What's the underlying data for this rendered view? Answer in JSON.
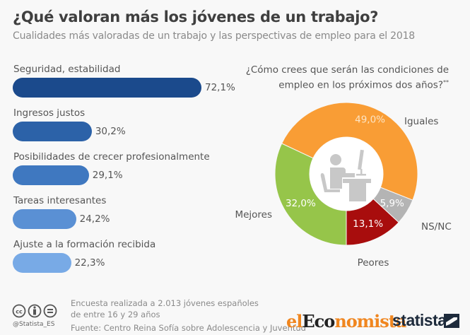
{
  "header": {
    "title": "¿Qué valoran más los jóvenes de un trabajo?",
    "subtitle": "Cualidades más valoradas de un trabajo y las perspectivas de empleo para el 2018"
  },
  "chart_data": [
    {
      "type": "bar",
      "orientation": "horizontal",
      "title": "Cualidades más valoradas de un trabajo",
      "categories": [
        "Seguridad, estabilidad",
        "Ingresos justos",
        "Posibilidades de crecer profesionalmente",
        "Tareas interesantes",
        "Ajuste a la formación recibida"
      ],
      "values": [
        72.1,
        30.2,
        29.1,
        24.2,
        22.3
      ],
      "value_labels": [
        "72,1%",
        "30,2%",
        "29,1%",
        "24,2%",
        "22,3%"
      ],
      "colors": [
        "#1b4a8c",
        "#2c62a8",
        "#3f78c0",
        "#5a90d4",
        "#78aae6"
      ],
      "unit": "%",
      "xlim": [
        0,
        72.1
      ],
      "grid": false
    },
    {
      "type": "pie",
      "style": "donut",
      "title": "¿Cómo crees que serán las condiciones de empleo en los próximos dos años?",
      "title_suffix": "**",
      "labels": [
        "Iguales",
        "NS/NC",
        "Peores",
        "Mejores"
      ],
      "values": [
        49.0,
        5.9,
        13.1,
        32.0
      ],
      "value_labels": [
        "49,0%",
        "5,9%",
        "13,1%",
        "32,0%"
      ],
      "colors": [
        "#f99d35",
        "#b4b4b4",
        "#a80d0d",
        "#96c54a"
      ],
      "center_icon": "office-worker-icon"
    }
  ],
  "footer": {
    "note_line1": "Encuesta realizada a 2.013 jóvenes españoles",
    "note_line2": "de entre 16 y 29 años",
    "source": "Fuente: Centro Reina Sofía sobre Adolescencia y Juventud",
    "handle": "@Statista_ES",
    "license_icons": [
      "cc-icon",
      "attribution-icon",
      "no-derivatives-icon"
    ]
  },
  "logos": {
    "eleconomista_part1": "el",
    "eleconomista_part2": "Eco",
    "eleconomista_part3": "nomista",
    "eleconomista_orange": "#f0861f",
    "eleconomista_dark": "#222222",
    "statista": "statista"
  }
}
